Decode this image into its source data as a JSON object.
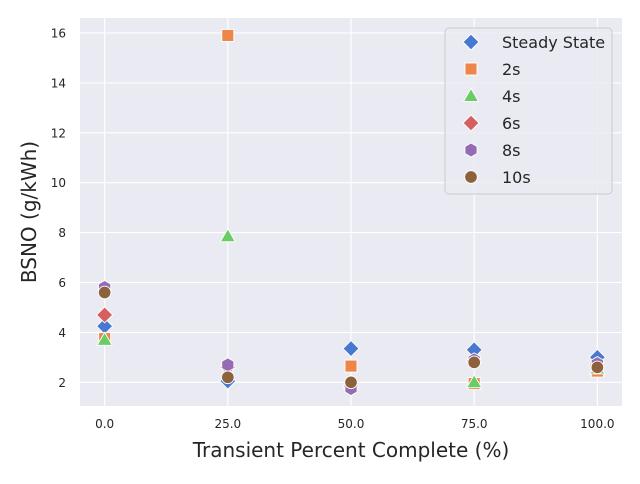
{
  "chart_data": {
    "type": "scatter",
    "title": "",
    "xlabel": "Transient Percent Complete (%)",
    "ylabel": "BSNO (g/kWh)",
    "xlim": [
      -5,
      105
    ],
    "ylim": [
      1.05,
      16.6
    ],
    "x_ticks": [
      0,
      25,
      50,
      75,
      100
    ],
    "x_tick_labels": [
      "0.0",
      "25.0",
      "50.0",
      "75.0",
      "100.0"
    ],
    "y_ticks": [
      2,
      4,
      6,
      8,
      10,
      12,
      14,
      16
    ],
    "y_tick_labels": [
      "2",
      "4",
      "6",
      "8",
      "10",
      "12",
      "14",
      "16"
    ],
    "grid": true,
    "legend_position": "top-right",
    "series": [
      {
        "name": "Steady State",
        "marker": "diamond",
        "color": "#4878d0",
        "points": [
          [
            0,
            4.25
          ],
          [
            25,
            2.05
          ],
          [
            50,
            3.35
          ],
          [
            75,
            3.3
          ],
          [
            100,
            3.0
          ]
        ]
      },
      {
        "name": "2s",
        "marker": "square",
        "color": "#ee854a",
        "points": [
          [
            0,
            3.75
          ],
          [
            25,
            15.9
          ],
          [
            50,
            2.65
          ],
          [
            75,
            1.95
          ],
          [
            100,
            2.45
          ]
        ]
      },
      {
        "name": "4s",
        "marker": "triangle",
        "color": "#6acc64",
        "points": [
          [
            0,
            3.7
          ],
          [
            25,
            7.85
          ],
          [
            50,
            1.95
          ],
          [
            75,
            2.0
          ],
          [
            100,
            2.55
          ]
        ]
      },
      {
        "name": "6s",
        "marker": "diamond",
        "color": "#d65f5f",
        "points": [
          [
            0,
            4.7
          ],
          [
            25,
            2.6
          ],
          [
            50,
            1.85
          ],
          [
            75,
            2.85
          ],
          [
            100,
            2.7
          ]
        ]
      },
      {
        "name": "8s",
        "marker": "hexagon",
        "color": "#956cb4",
        "points": [
          [
            0,
            5.8
          ],
          [
            25,
            2.7
          ],
          [
            50,
            1.75
          ],
          [
            75,
            2.9
          ],
          [
            100,
            2.75
          ]
        ]
      },
      {
        "name": "10s",
        "marker": "circle",
        "color": "#8c613c",
        "points": [
          [
            0,
            5.6
          ],
          [
            25,
            2.2
          ],
          [
            50,
            2.0
          ],
          [
            75,
            2.8
          ],
          [
            100,
            2.6
          ]
        ]
      }
    ]
  }
}
